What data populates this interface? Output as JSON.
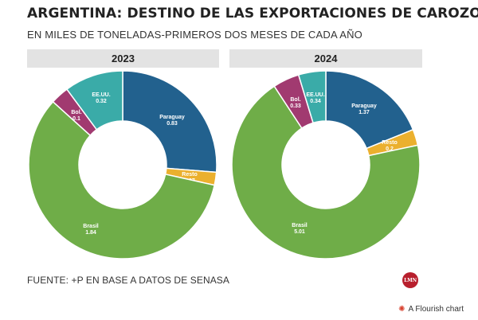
{
  "title": "ARGENTINA: DESTINO DE LAS EXPORTACIONES DE CAROZO",
  "subtitle": "EN MILES DE TONELADAS-PRIMEROS DOS MESES DE CADA AÑO",
  "source": "FUENTE: +P EN BASE A DATOS DE SENASA",
  "logo_text": "LMN",
  "flourish": {
    "label": "A Flourish chart",
    "icon": "flourish-icon"
  },
  "chart_data": [
    {
      "type": "pie",
      "title": "2023",
      "donut": true,
      "slices": [
        {
          "label": "Paraguay",
          "value_label": "0.83",
          "value": 0.83,
          "color": "#22618e"
        },
        {
          "label": "Resto",
          "value_label": "0.07",
          "value": 0.07,
          "color": "#ebb02e"
        },
        {
          "label": "Brasil",
          "value_label": "1.84",
          "value": 1.84,
          "color": "#6fad48"
        },
        {
          "label": "Bol.",
          "value_label": "0.1",
          "value": 0.1,
          "color": "#a13a70"
        },
        {
          "label": "EE.UU.",
          "value_label": "0.32",
          "value": 0.32,
          "color": "#3aaba8"
        }
      ]
    },
    {
      "type": "pie",
      "title": "2024",
      "donut": true,
      "slices": [
        {
          "label": "Paraguay",
          "value_label": "1.37",
          "value": 1.37,
          "color": "#22618e"
        },
        {
          "label": "Resto",
          "value_label": "0.2",
          "value": 0.2,
          "color": "#ebb02e"
        },
        {
          "label": "Brasil",
          "value_label": "5.01",
          "value": 5.01,
          "color": "#6fad48"
        },
        {
          "label": "Bol.",
          "value_label": "0.33",
          "value": 0.33,
          "color": "#a13a70"
        },
        {
          "label": "EE.UU.",
          "value_label": "0.34",
          "value": 0.34,
          "color": "#3aaba8"
        }
      ]
    }
  ]
}
